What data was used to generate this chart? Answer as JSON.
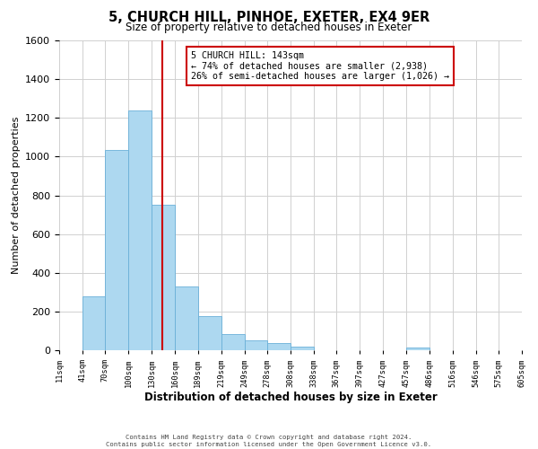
{
  "title": "5, CHURCH HILL, PINHOE, EXETER, EX4 9ER",
  "subtitle": "Size of property relative to detached houses in Exeter",
  "xlabel": "Distribution of detached houses by size in Exeter",
  "ylabel": "Number of detached properties",
  "bin_labels": [
    "11sqm",
    "41sqm",
    "70sqm",
    "100sqm",
    "130sqm",
    "160sqm",
    "189sqm",
    "219sqm",
    "249sqm",
    "278sqm",
    "308sqm",
    "338sqm",
    "367sqm",
    "397sqm",
    "427sqm",
    "457sqm",
    "486sqm",
    "516sqm",
    "546sqm",
    "575sqm",
    "605sqm"
  ],
  "bin_edges": [
    11,
    41,
    70,
    100,
    130,
    160,
    189,
    219,
    249,
    278,
    308,
    338,
    367,
    397,
    427,
    457,
    486,
    516,
    546,
    575,
    605
  ],
  "bar_heights": [
    0,
    280,
    1035,
    1240,
    750,
    330,
    175,
    85,
    50,
    37,
    20,
    0,
    0,
    0,
    0,
    12,
    0,
    0,
    0,
    0
  ],
  "bar_color": "#add8f0",
  "bar_edgecolor": "#6ab0d8",
  "vline_x": 143,
  "vline_color": "#cc0000",
  "ylim": [
    0,
    1600
  ],
  "yticks": [
    0,
    200,
    400,
    600,
    800,
    1000,
    1200,
    1400,
    1600
  ],
  "annotation_title": "5 CHURCH HILL: 143sqm",
  "annotation_line1": "← 74% of detached houses are smaller (2,938)",
  "annotation_line2": "26% of semi-detached houses are larger (1,026) →",
  "annotation_box_color": "#ffffff",
  "annotation_box_edgecolor": "#cc0000",
  "footer_line1": "Contains HM Land Registry data © Crown copyright and database right 2024.",
  "footer_line2": "Contains public sector information licensed under the Open Government Licence v3.0.",
  "background_color": "#ffffff",
  "grid_color": "#d0d0d0"
}
